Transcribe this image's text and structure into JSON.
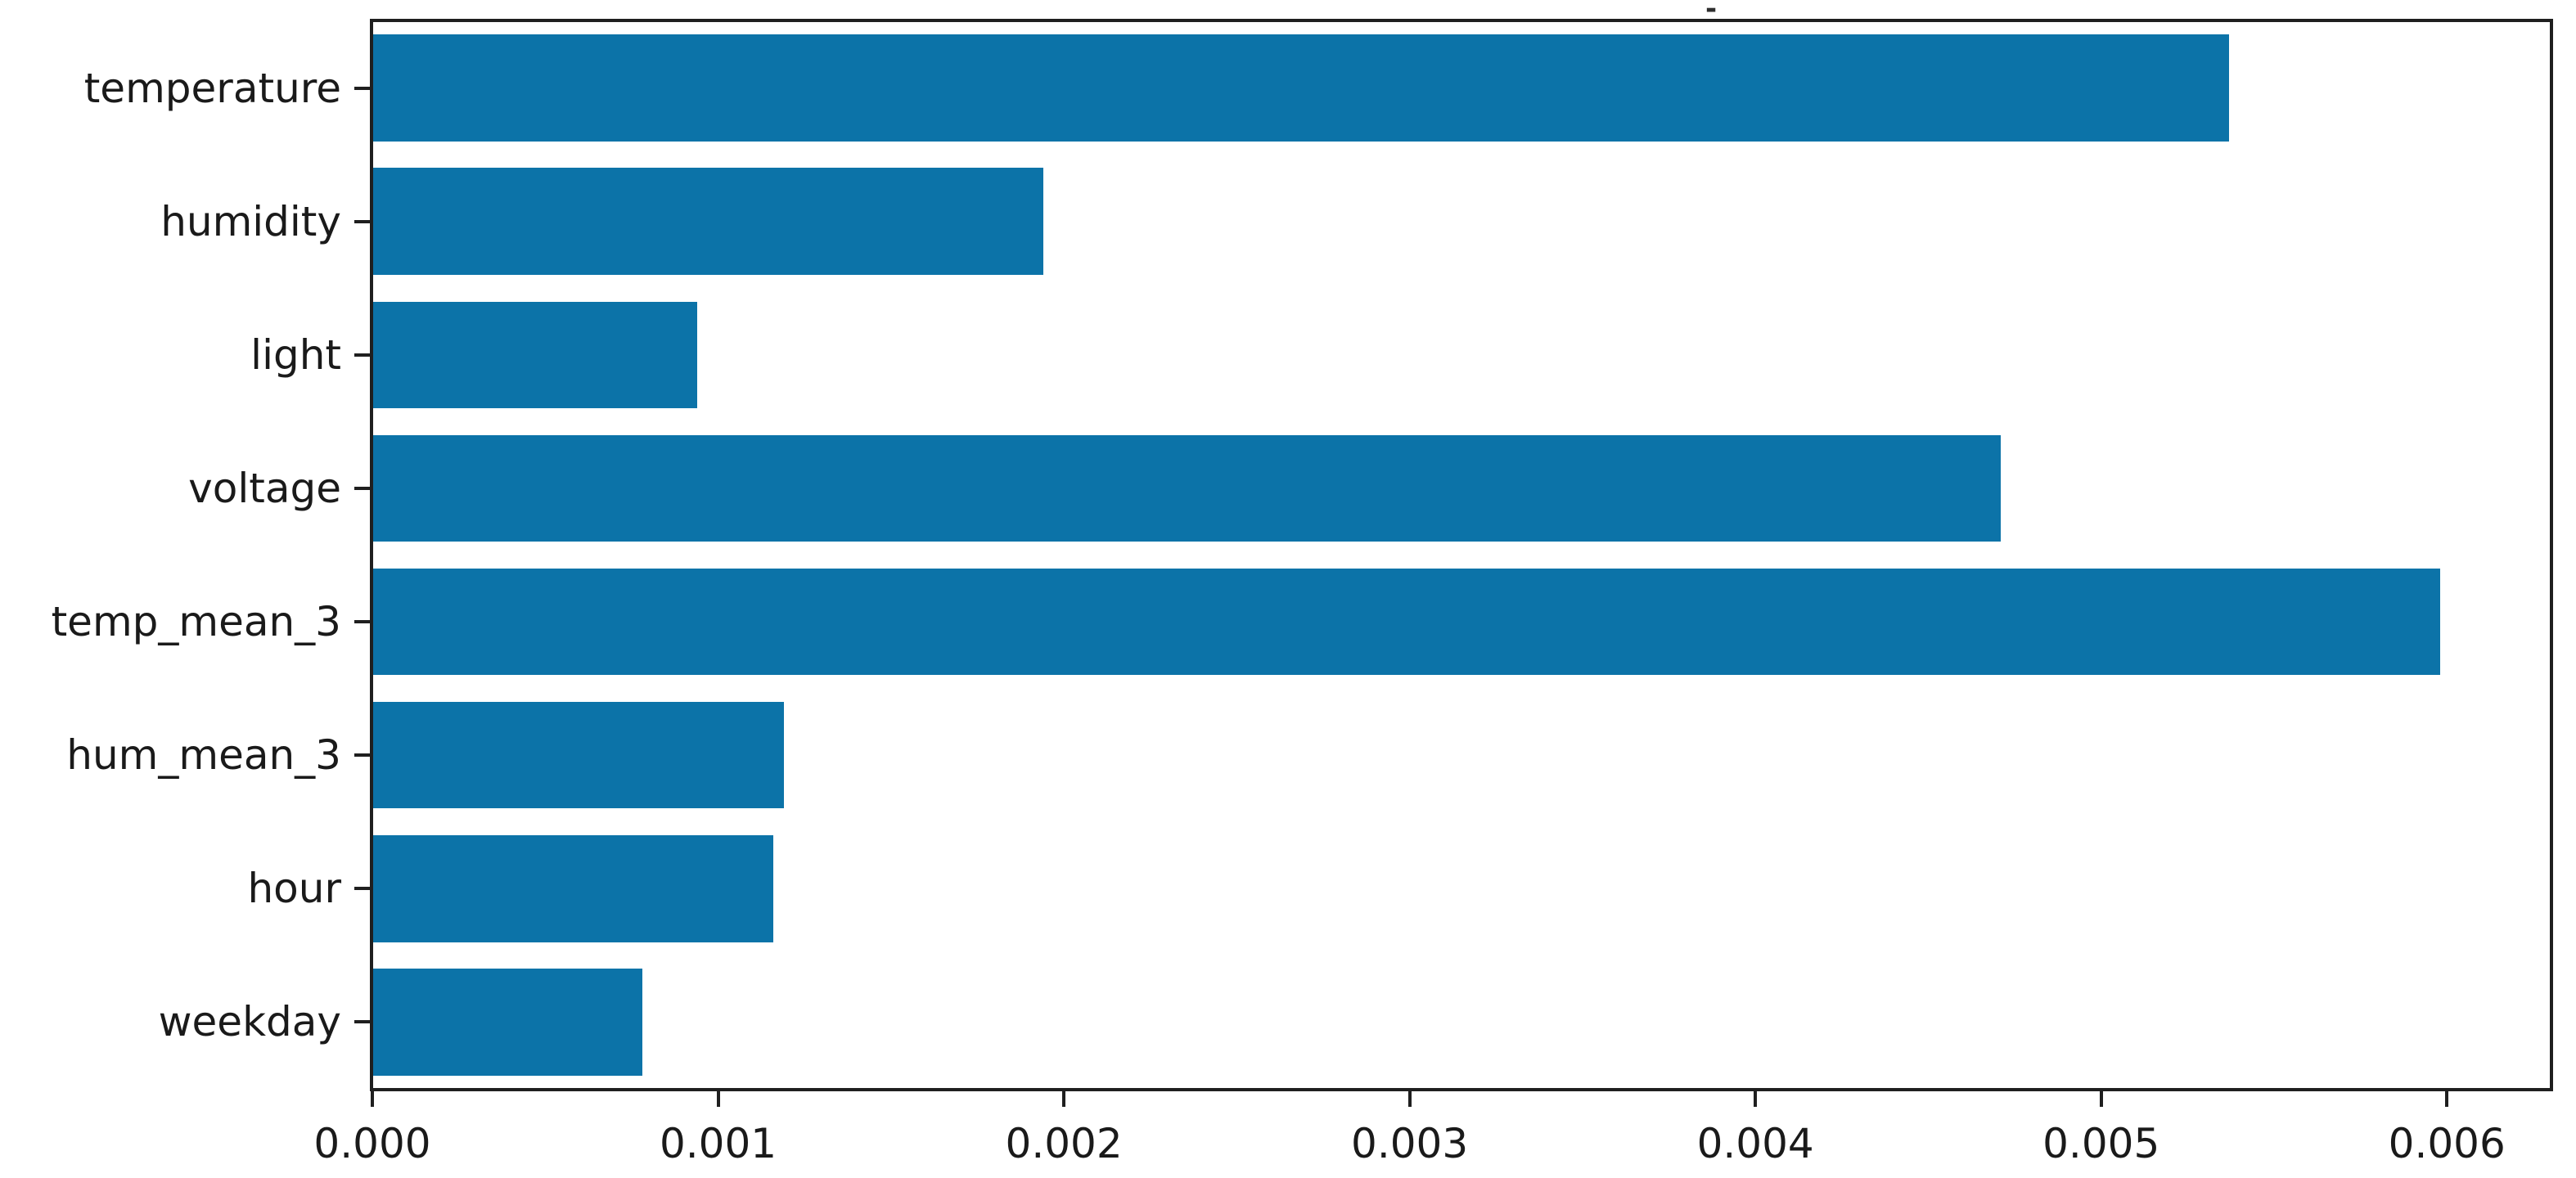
{
  "chart_data": {
    "type": "bar",
    "orientation": "horizontal",
    "title_mark": "-",
    "categories": [
      "temperature",
      "humidity",
      "light",
      "voltage",
      "temp_mean_3",
      "hum_mean_3",
      "hour",
      "weekday"
    ],
    "values": [
      0.00537,
      0.00194,
      0.00094,
      0.00471,
      0.00598,
      0.00119,
      0.00116,
      0.00078
    ],
    "x_tick_labels": [
      "0.000",
      "0.001",
      "0.002",
      "0.003",
      "0.004",
      "0.005",
      "0.006"
    ],
    "x_tick_values": [
      0.0,
      0.001,
      0.002,
      0.003,
      0.004,
      0.005,
      0.006
    ],
    "xlim": [
      0,
      0.0063
    ],
    "xlabel": "",
    "ylabel": "",
    "legend": null,
    "grid": false,
    "bar_color": "#0c73a8",
    "spine_color": "#1f1f1f",
    "background_color": "#ffffff",
    "bar_band_fraction": 0.8
  }
}
